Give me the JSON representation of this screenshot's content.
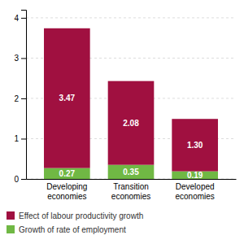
{
  "chart_data": {
    "type": "bar",
    "stacked": true,
    "categories": [
      "Developing\neconomies",
      "Transition\neconomies",
      "Developed\neconomies"
    ],
    "series": [
      {
        "name": "Growth of rate of employment",
        "color": "#70B844",
        "values": [
          0.27,
          0.35,
          0.19
        ],
        "value_labels": [
          "0.27",
          "0.35",
          "0.19"
        ]
      },
      {
        "name": "Effect of labour productivity growth",
        "color": "#A01040",
        "values": [
          3.47,
          2.08,
          1.3
        ],
        "value_labels": [
          "3.47",
          "2.08",
          "1.30"
        ]
      }
    ],
    "ylim": [
      0,
      4.2
    ],
    "yticks": [
      0,
      1,
      2,
      3,
      4
    ],
    "grid": true,
    "data_labels": true,
    "legend": "bottom"
  }
}
